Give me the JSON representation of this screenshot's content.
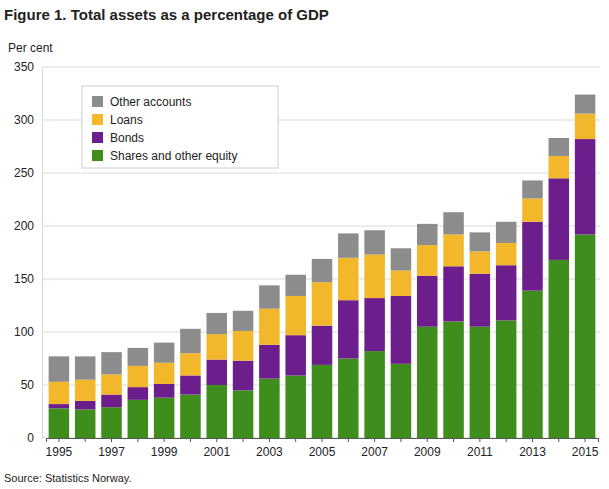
{
  "chart_data": {
    "type": "bar",
    "stacked": true,
    "grid": true,
    "legend": "top-left",
    "title": "Figure 1. Total assets as a percentage of GDP",
    "y_label": "Per cent",
    "source": "Source: Statistics Norway.",
    "categories": [
      "1995",
      null,
      "1997",
      null,
      "1999",
      null,
      "2001",
      null,
      "2003",
      null,
      "2005",
      null,
      "2007",
      null,
      "2009",
      null,
      "2011",
      null,
      "2013",
      null,
      "2015"
    ],
    "ylim": [
      0,
      350
    ],
    "yticks": [
      0,
      50,
      100,
      150,
      200,
      250,
      300,
      350
    ],
    "series": [
      {
        "name": "Shares and other equity",
        "color": "#3f8e1d",
        "values": [
          28,
          27,
          29,
          36,
          38,
          41,
          50,
          45,
          56,
          59,
          69,
          75,
          82,
          70,
          105,
          110,
          105,
          111,
          139,
          168,
          192
        ]
      },
      {
        "name": "Bonds",
        "color": "#6c1f8c",
        "values": [
          4,
          8,
          12,
          12,
          13,
          18,
          24,
          28,
          32,
          38,
          37,
          55,
          50,
          64,
          48,
          52,
          50,
          52,
          65,
          77,
          90
        ]
      },
      {
        "name": "Loans",
        "color": "#f2b72a",
        "values": [
          21,
          20,
          19,
          20,
          20,
          21,
          24,
          28,
          34,
          37,
          41,
          40,
          41,
          24,
          29,
          30,
          21,
          21,
          22,
          21,
          24
        ]
      },
      {
        "name": "Other accounts",
        "color": "#8c8c8c",
        "values": [
          24,
          22,
          21,
          17,
          19,
          23,
          20,
          19,
          22,
          20,
          22,
          23,
          23,
          21,
          20,
          21,
          18,
          20,
          17,
          17,
          18
        ]
      }
    ]
  }
}
